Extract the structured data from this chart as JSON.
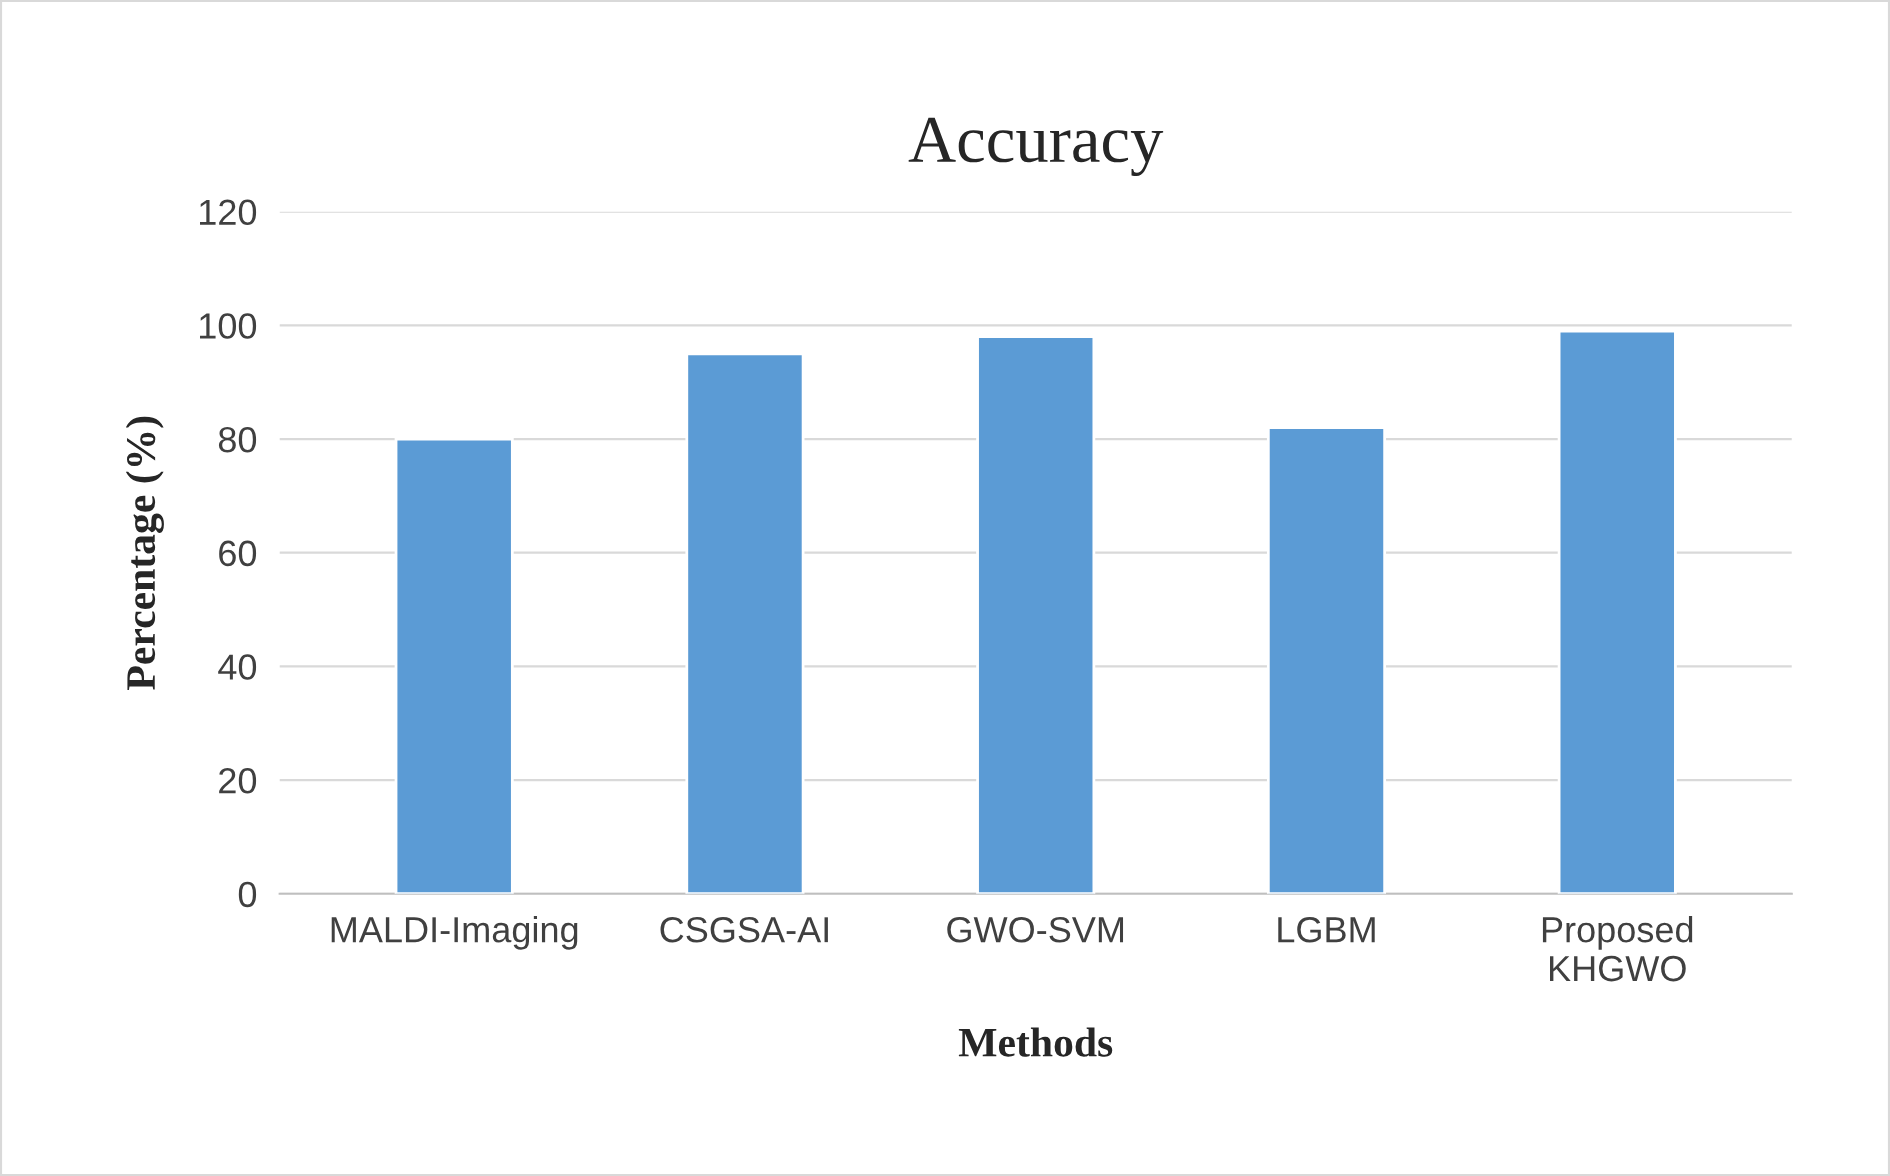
{
  "chart_data": {
    "type": "bar",
    "title": "Accuracy",
    "xlabel": "Methods",
    "ylabel": "Percentage (%)",
    "categories": [
      "MALDI-Imaging",
      "CSGSA-AI",
      "GWO-SVM",
      "LGBM",
      "Proposed\nKHGWO"
    ],
    "values": [
      80,
      95,
      98,
      82,
      99
    ],
    "color": "#5b9bd5",
    "ylim": [
      0,
      120
    ],
    "yticks": [
      0,
      20,
      40,
      60,
      80,
      100,
      120
    ],
    "grid": "y",
    "legend": false
  }
}
